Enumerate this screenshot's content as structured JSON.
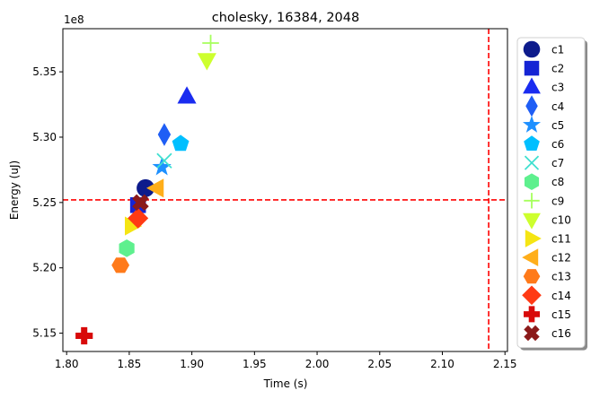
{
  "chart_data": {
    "type": "scatter",
    "title": "cholesky, 16384, 2048",
    "xlabel": "Time (s)",
    "ylabel": "Energy (uJ)",
    "y_offset_label": "1e8",
    "xlim": [
      1.797,
      2.152
    ],
    "ylim": [
      513.6,
      538.3
    ],
    "y_units_note": "y values in units of 1e6 uJ (axis ticks shown as x1e8)",
    "xticks": [
      1.8,
      1.85,
      1.9,
      1.95,
      2.0,
      2.05,
      2.1,
      2.15
    ],
    "xtick_labels": [
      "1.80",
      "1.85",
      "1.90",
      "1.95",
      "2.00",
      "2.05",
      "2.10",
      "2.15"
    ],
    "yticks": [
      515,
      520,
      525,
      530,
      535
    ],
    "ytick_labels": [
      "5.15",
      "5.20",
      "5.25",
      "5.30",
      "5.35"
    ],
    "grid": false,
    "legend_position": "outside-right",
    "reference_lines": {
      "horizontal_y": 525.2,
      "vertical_x": 2.137,
      "color": "#ff0000",
      "style": "dashed"
    },
    "series": [
      {
        "name": "c1",
        "x": 1.863,
        "y": 526.1,
        "marker": "circle",
        "color": "#0d1b8c"
      },
      {
        "name": "c2",
        "x": 1.857,
        "y": 524.8,
        "marker": "square",
        "color": "#1524d4"
      },
      {
        "name": "c3",
        "x": 1.896,
        "y": 533.1,
        "marker": "triangle-up",
        "color": "#1a2cf0"
      },
      {
        "name": "c4",
        "x": 1.878,
        "y": 530.2,
        "marker": "thin-diamond",
        "color": "#1f5ef5"
      },
      {
        "name": "c5",
        "x": 1.876,
        "y": 527.7,
        "marker": "star",
        "color": "#1e90ff"
      },
      {
        "name": "c6",
        "x": 1.891,
        "y": 529.5,
        "marker": "pentagon",
        "color": "#00bfff"
      },
      {
        "name": "c7",
        "x": 1.878,
        "y": 528.2,
        "marker": "x",
        "color": "#40e0d0"
      },
      {
        "name": "c8",
        "x": 1.848,
        "y": 521.5,
        "marker": "hexagon",
        "color": "#5ef08e"
      },
      {
        "name": "c9",
        "x": 1.915,
        "y": 537.2,
        "marker": "plus",
        "color": "#a6ff5c"
      },
      {
        "name": "c10",
        "x": 1.912,
        "y": 535.9,
        "marker": "triangle-down",
        "color": "#cdff2e"
      },
      {
        "name": "c11",
        "x": 1.852,
        "y": 523.2,
        "marker": "triangle-right",
        "color": "#f5e513"
      },
      {
        "name": "c12",
        "x": 1.872,
        "y": 526.1,
        "marker": "triangle-left",
        "color": "#ffae1a"
      },
      {
        "name": "c13",
        "x": 1.843,
        "y": 520.2,
        "marker": "hexagon2",
        "color": "#ff7a1a"
      },
      {
        "name": "c14",
        "x": 1.857,
        "y": 523.8,
        "marker": "diamond",
        "color": "#ff3a14"
      },
      {
        "name": "c15",
        "x": 1.814,
        "y": 514.8,
        "marker": "plus-filled",
        "color": "#d80a0a"
      },
      {
        "name": "c16",
        "x": 1.859,
        "y": 525.0,
        "marker": "x-filled",
        "color": "#8b1a1a"
      }
    ]
  }
}
